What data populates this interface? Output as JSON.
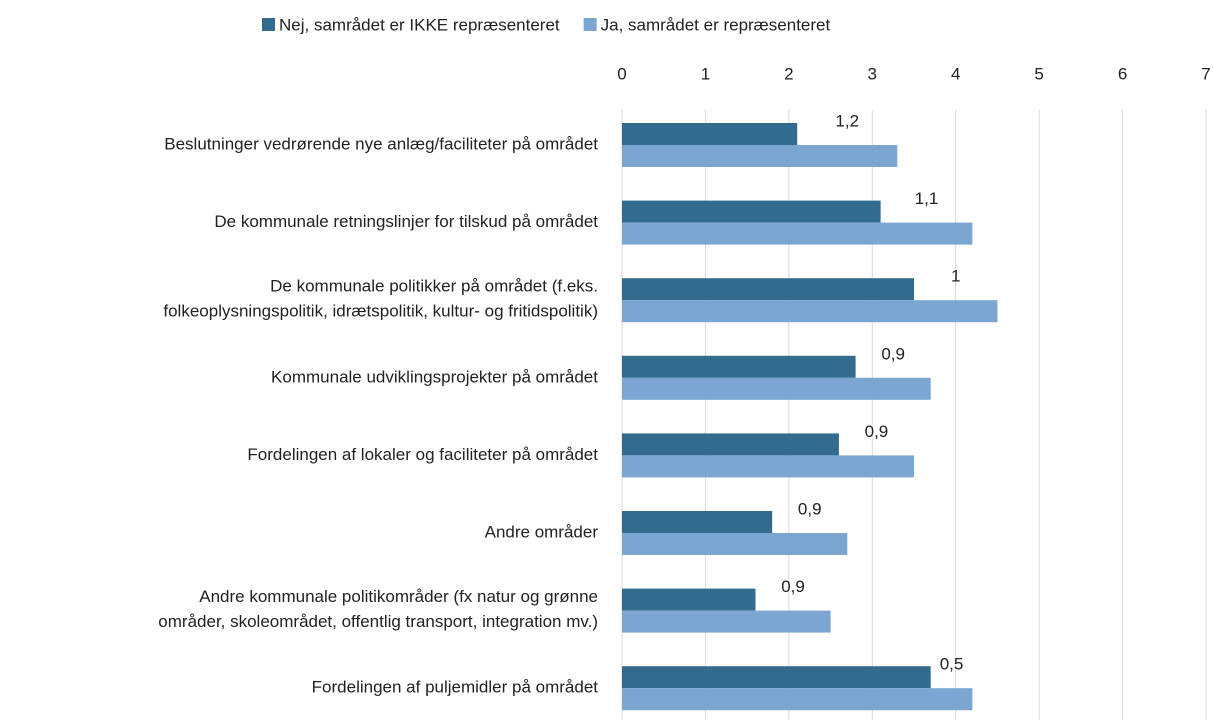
{
  "chart_data": {
    "type": "hbar",
    "categories": [
      "Beslutninger vedrørende nye anlæg/faciliteter på området",
      "De kommunale retningslinjer for tilskud på området",
      "De kommunale politikker på området (f.eks.\nfolkeoplysningspolitik, idrætspolitik, kultur- og fritidspolitik)",
      "Kommunale udviklingsprojekter på området",
      "Fordelingen af lokaler og faciliteter på området",
      "Andre områder",
      "Andre kommunale politikområder (fx natur og grønne\nområder, skoleområdet, offentlig transport, integration mv.)",
      "Fordelingen af puljemidler på området"
    ],
    "series": [
      {
        "name": "Nej, samrådet er IKKE repræsenteret",
        "color": "#336b8f",
        "values": [
          2.1,
          3.1,
          3.5,
          2.8,
          2.6,
          1.8,
          1.6,
          3.7
        ]
      },
      {
        "name": "Ja, samrådet er repræsenteret",
        "color": "#7aa6d1",
        "values": [
          3.3,
          4.2,
          4.5,
          3.7,
          3.5,
          2.7,
          2.5,
          4.2
        ]
      }
    ],
    "differences": {
      "values": [
        1.2,
        1.1,
        1,
        0.9,
        0.9,
        0.9,
        0.9,
        0.5
      ],
      "value_labels": [
        "1,2",
        "1,1",
        "1",
        "0,9",
        "0,9",
        "0,9",
        "0,9",
        "0,5"
      ]
    },
    "xlim": [
      0,
      7
    ],
    "xticks": [
      0,
      1,
      2,
      3,
      4,
      5,
      6,
      7
    ],
    "grid": true,
    "legend": "top"
  }
}
